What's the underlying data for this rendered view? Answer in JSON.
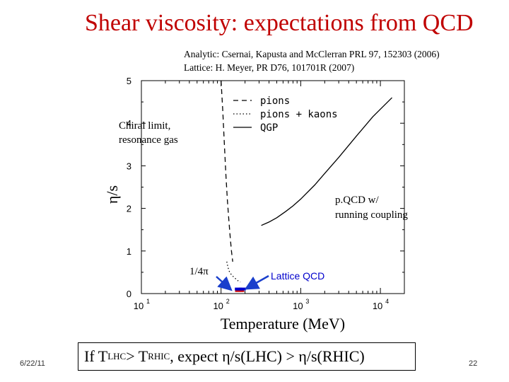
{
  "slide": {
    "title": "Shear viscosity: expectations from QCD",
    "ref_line1": "Analytic: Csernai, Kapusta and McClerran PRL 97, 152303 (2006)",
    "ref_line2": "Lattice: H. Meyer, PR D76, 101701R (2007)",
    "date": "6/22/11",
    "page": "22",
    "bottom": {
      "prefix": "If T",
      "sub1": "LHC",
      "mid": " > T",
      "sub2": "RHIC",
      "suffix": ", expect η/s(LHC) > η/s(RHIC)"
    }
  },
  "chart_data": {
    "type": "line",
    "xlabel": "Temperature (MeV)",
    "ylabel": "η/s",
    "xscale": "log",
    "xlim": [
      10,
      20000
    ],
    "ylim": [
      0,
      5
    ],
    "xticks": [
      {
        "value": 10,
        "base": "10",
        "exp": "1"
      },
      {
        "value": 100,
        "base": "10",
        "exp": "2"
      },
      {
        "value": 1000,
        "base": "10",
        "exp": "3"
      },
      {
        "value": 10000,
        "base": "10",
        "exp": "4"
      }
    ],
    "yticks": [
      0,
      1,
      2,
      3,
      4,
      5
    ],
    "legend": {
      "position": "top-right",
      "entries": [
        {
          "label": "pions",
          "style": "dashed"
        },
        {
          "label": "pions + kaons",
          "style": "dotted"
        },
        {
          "label": "QGP",
          "style": "solid"
        }
      ]
    },
    "series": [
      {
        "name": "pions",
        "style": "dashed",
        "points": [
          [
            100,
            5.0
          ],
          [
            105,
            4.3
          ],
          [
            110,
            3.5
          ],
          [
            115,
            2.8
          ],
          [
            120,
            2.2
          ],
          [
            125,
            1.75
          ],
          [
            130,
            1.35
          ],
          [
            135,
            1.0
          ],
          [
            140,
            0.75
          ]
        ]
      },
      {
        "name": "pions + kaons",
        "style": "dotted",
        "points": [
          [
            118,
            0.75
          ],
          [
            122,
            0.62
          ],
          [
            127,
            0.52
          ],
          [
            133,
            0.46
          ],
          [
            140,
            0.41
          ],
          [
            150,
            0.36
          ],
          [
            160,
            0.31
          ],
          [
            175,
            0.27
          ]
        ]
      },
      {
        "name": "QGP",
        "style": "solid",
        "points": [
          [
            320,
            1.6
          ],
          [
            400,
            1.68
          ],
          [
            500,
            1.78
          ],
          [
            650,
            1.93
          ],
          [
            800,
            2.06
          ],
          [
            1000,
            2.22
          ],
          [
            1500,
            2.55
          ],
          [
            2000,
            2.82
          ],
          [
            3000,
            3.2
          ],
          [
            5000,
            3.7
          ],
          [
            8000,
            4.15
          ],
          [
            10000,
            4.33
          ],
          [
            14000,
            4.6
          ]
        ]
      }
    ],
    "lattice_points": [
      [
        165,
        0.09
      ],
      [
        185,
        0.09
      ]
    ],
    "kss_bound": 0.0796,
    "annotations": {
      "chiral": [
        "Chiral limit,",
        "resonance gas"
      ],
      "pqcd": [
        "p.QCD w/",
        "running coupling"
      ],
      "kss": "1/4π",
      "lattice": "Lattice QCD"
    },
    "colors": {
      "kss_line": "#cc0000",
      "lattice_mark": "#0000cc",
      "arrow": "#1a3fcc",
      "annotation_text": "#0000cc"
    }
  }
}
